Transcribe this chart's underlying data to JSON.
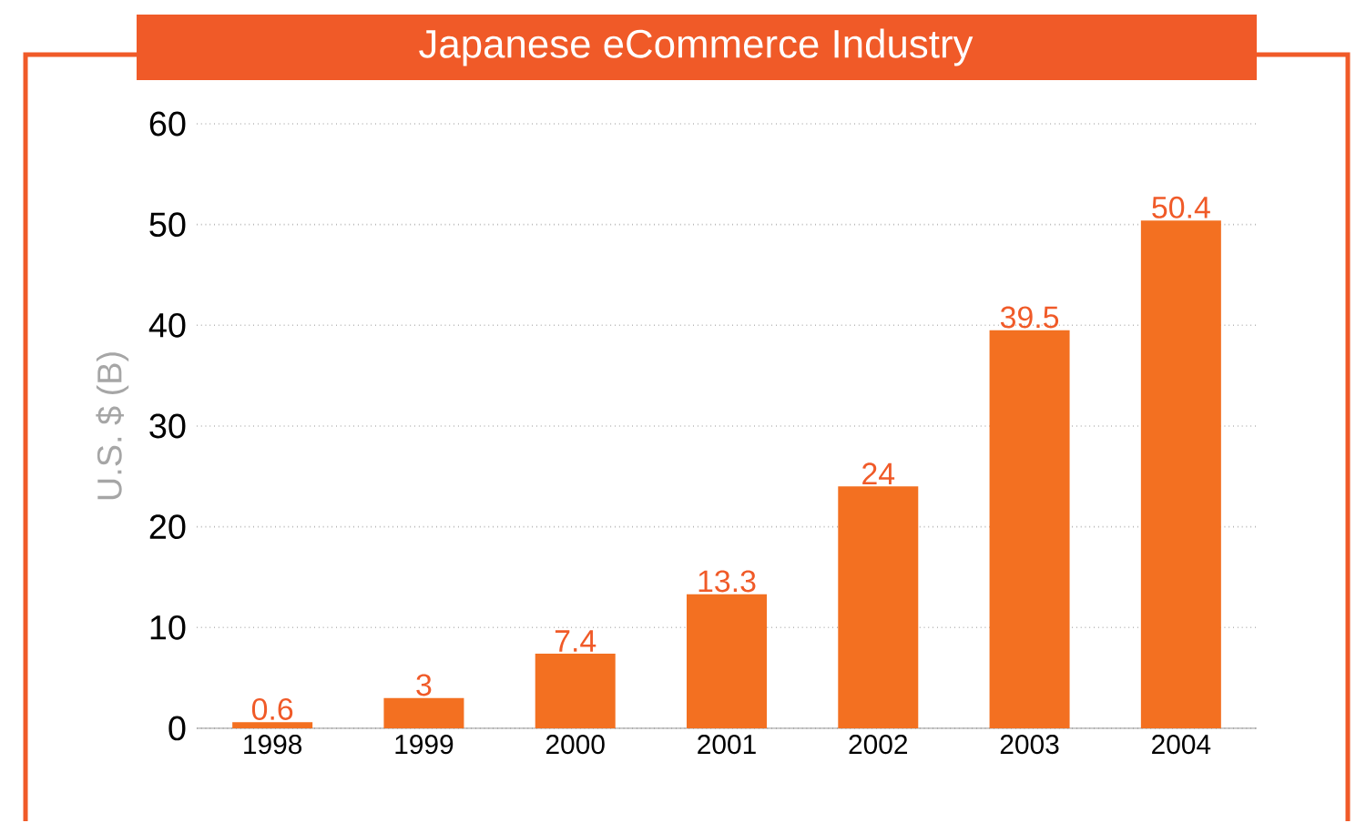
{
  "chart_data": {
    "type": "bar",
    "title": "Japanese eCommerce Industry",
    "ylabel": "U.S. $ (B)",
    "categories": [
      "1998",
      "1999",
      "2000",
      "2001",
      "2002",
      "2003",
      "2004"
    ],
    "values": [
      0.6,
      3,
      7.4,
      13.3,
      24,
      39.5,
      50.4
    ],
    "color": "#f37021",
    "ylim": [
      0,
      60
    ],
    "yticks": [
      0,
      10,
      20,
      30,
      40,
      50,
      60
    ],
    "grid": "y",
    "data_labels": true
  }
}
